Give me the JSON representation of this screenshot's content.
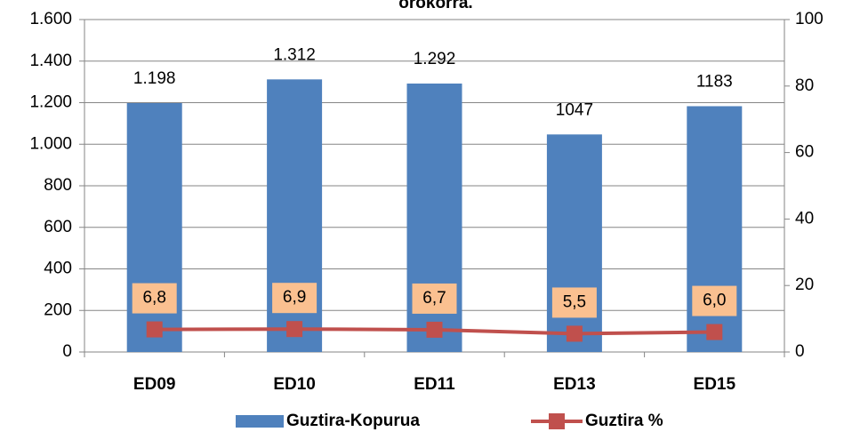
{
  "chart_data": {
    "type": "bar",
    "title": "orokorra.",
    "categories": [
      "ED09",
      "ED10",
      "ED11",
      "ED13",
      "ED15"
    ],
    "series": [
      {
        "name": "Guztira-Kopurua",
        "type": "bar",
        "color": "#4f81bd",
        "values": [
          1198,
          1312,
          1292,
          1047,
          1183
        ],
        "value_labels": [
          "1.198",
          "1.312",
          "1.292",
          "1047",
          "1183"
        ]
      },
      {
        "name": "Guztira %",
        "type": "line",
        "axis": "y2",
        "color": "#c0504d",
        "values": [
          6.8,
          6.9,
          6.7,
          5.5,
          6.0
        ],
        "value_labels": [
          "6,8",
          "6,9",
          "6,7",
          "5,5",
          "6,0"
        ]
      }
    ],
    "ylim": [
      0,
      1600
    ],
    "yticks": [
      0,
      200,
      400,
      600,
      800,
      {
        "value": 1000,
        "label": "1.000"
      },
      {
        "value": 1200,
        "label": "1.200"
      },
      {
        "value": 1400,
        "label": "1.400"
      },
      {
        "value": 1600,
        "label": "1.600"
      }
    ],
    "y2lim": [
      0,
      100
    ],
    "y2ticks": [
      0,
      20,
      40,
      60,
      80,
      100
    ],
    "grid": true,
    "legend": "bottom"
  }
}
